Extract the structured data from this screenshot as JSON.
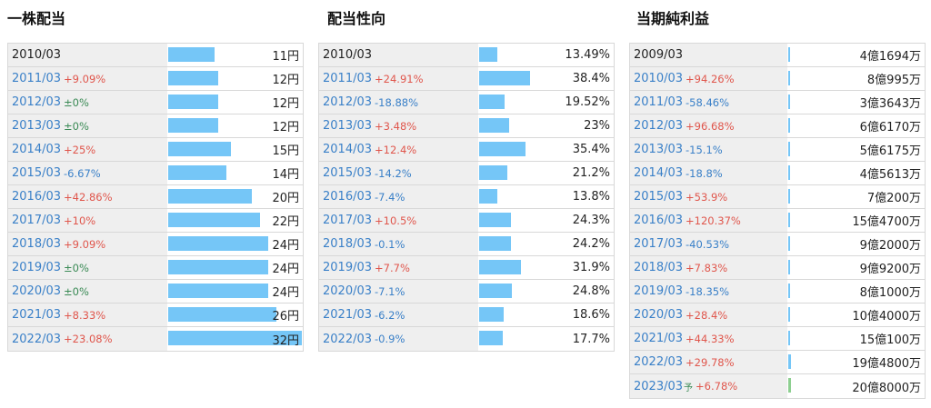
{
  "titles": {
    "dividend": "一株配当",
    "payout": "配当性向",
    "profit": "当期純利益"
  },
  "colors": {
    "bar": "#75c6f7",
    "forecast_bar": "#8dcf90",
    "increase": "#e0564c",
    "decrease": "#3a80c8",
    "flat": "#3a8a55"
  },
  "dividend": {
    "max": 32,
    "rows": [
      {
        "year": "2010/03",
        "yoy": "",
        "dir": "",
        "value": "11円",
        "amount": 11
      },
      {
        "year": "2011/03",
        "yoy": "+9.09%",
        "dir": "up",
        "value": "12円",
        "amount": 12
      },
      {
        "year": "2012/03",
        "yoy": "±0%",
        "dir": "flat",
        "value": "12円",
        "amount": 12
      },
      {
        "year": "2013/03",
        "yoy": "±0%",
        "dir": "flat",
        "value": "12円",
        "amount": 12
      },
      {
        "year": "2014/03",
        "yoy": "+25%",
        "dir": "up",
        "value": "15円",
        "amount": 15
      },
      {
        "year": "2015/03",
        "yoy": "-6.67%",
        "dir": "down",
        "value": "14円",
        "amount": 14
      },
      {
        "year": "2016/03",
        "yoy": "+42.86%",
        "dir": "up",
        "value": "20円",
        "amount": 20
      },
      {
        "year": "2017/03",
        "yoy": "+10%",
        "dir": "up",
        "value": "22円",
        "amount": 22
      },
      {
        "year": "2018/03",
        "yoy": "+9.09%",
        "dir": "up",
        "value": "24円",
        "amount": 24
      },
      {
        "year": "2019/03",
        "yoy": "±0%",
        "dir": "flat",
        "value": "24円",
        "amount": 24
      },
      {
        "year": "2020/03",
        "yoy": "±0%",
        "dir": "flat",
        "value": "24円",
        "amount": 24
      },
      {
        "year": "2021/03",
        "yoy": "+8.33%",
        "dir": "up",
        "value": "26円",
        "amount": 26
      },
      {
        "year": "2022/03",
        "yoy": "+23.08%",
        "dir": "up",
        "value": "32円",
        "amount": 32
      }
    ]
  },
  "payout": {
    "max": 100,
    "rows": [
      {
        "year": "2010/03",
        "yoy": "",
        "dir": "",
        "value": "13.49%",
        "amount": 13.49
      },
      {
        "year": "2011/03",
        "yoy": "+24.91%",
        "dir": "up",
        "value": "38.4%",
        "amount": 38.4
      },
      {
        "year": "2012/03",
        "yoy": "-18.88%",
        "dir": "down",
        "value": "19.52%",
        "amount": 19.52
      },
      {
        "year": "2013/03",
        "yoy": "+3.48%",
        "dir": "up",
        "value": "23%",
        "amount": 23
      },
      {
        "year": "2014/03",
        "yoy": "+12.4%",
        "dir": "up",
        "value": "35.4%",
        "amount": 35.4
      },
      {
        "year": "2015/03",
        "yoy": "-14.2%",
        "dir": "down",
        "value": "21.2%",
        "amount": 21.2
      },
      {
        "year": "2016/03",
        "yoy": "-7.4%",
        "dir": "down",
        "value": "13.8%",
        "amount": 13.8
      },
      {
        "year": "2017/03",
        "yoy": "+10.5%",
        "dir": "up",
        "value": "24.3%",
        "amount": 24.3
      },
      {
        "year": "2018/03",
        "yoy": "-0.1%",
        "dir": "down",
        "value": "24.2%",
        "amount": 24.2
      },
      {
        "year": "2019/03",
        "yoy": "+7.7%",
        "dir": "up",
        "value": "31.9%",
        "amount": 31.9
      },
      {
        "year": "2020/03",
        "yoy": "-7.1%",
        "dir": "down",
        "value": "24.8%",
        "amount": 24.8
      },
      {
        "year": "2021/03",
        "yoy": "-6.2%",
        "dir": "down",
        "value": "18.6%",
        "amount": 18.6
      },
      {
        "year": "2022/03",
        "yoy": "-0.9%",
        "dir": "down",
        "value": "17.7%",
        "amount": 17.7
      }
    ]
  },
  "profit": {
    "max": 1000,
    "rows": [
      {
        "year": "2009/03",
        "yoy": "",
        "dir": "",
        "value": "4億1694万",
        "amount": 4.1694
      },
      {
        "year": "2010/03",
        "yoy": "+94.26%",
        "dir": "up",
        "value": "8億995万",
        "amount": 8.0995
      },
      {
        "year": "2011/03",
        "yoy": "-58.46%",
        "dir": "down",
        "value": "3億3643万",
        "amount": 3.3643
      },
      {
        "year": "2012/03",
        "yoy": "+96.68%",
        "dir": "up",
        "value": "6億6170万",
        "amount": 6.617
      },
      {
        "year": "2013/03",
        "yoy": "-15.1%",
        "dir": "down",
        "value": "5億6175万",
        "amount": 5.6175
      },
      {
        "year": "2014/03",
        "yoy": "-18.8%",
        "dir": "down",
        "value": "4億5613万",
        "amount": 4.5613
      },
      {
        "year": "2015/03",
        "yoy": "+53.9%",
        "dir": "up",
        "value": "7億200万",
        "amount": 7.02
      },
      {
        "year": "2016/03",
        "yoy": "+120.37%",
        "dir": "up",
        "value": "15億4700万",
        "amount": 15.47
      },
      {
        "year": "2017/03",
        "yoy": "-40.53%",
        "dir": "down",
        "value": "9億2000万",
        "amount": 9.2
      },
      {
        "year": "2018/03",
        "yoy": "+7.83%",
        "dir": "up",
        "value": "9億9200万",
        "amount": 9.92
      },
      {
        "year": "2019/03",
        "yoy": "-18.35%",
        "dir": "down",
        "value": "8億1000万",
        "amount": 8.1
      },
      {
        "year": "2020/03",
        "yoy": "+28.4%",
        "dir": "up",
        "value": "10億4000万",
        "amount": 10.4
      },
      {
        "year": "2021/03",
        "yoy": "+44.33%",
        "dir": "up",
        "value": "15億100万",
        "amount": 15.01
      },
      {
        "year": "2022/03",
        "yoy": "+29.78%",
        "dir": "up",
        "value": "19億4800万",
        "amount": 19.48
      },
      {
        "year": "2023/03",
        "yoy": "+6.78%",
        "dir": "up",
        "value": "20億8000万",
        "amount": 20.8,
        "forecast": true,
        "forecast_mark": "予"
      }
    ]
  }
}
